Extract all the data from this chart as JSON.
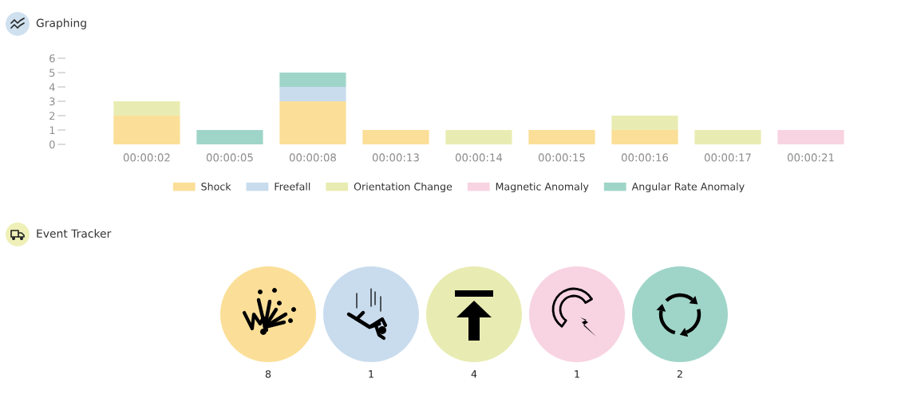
{
  "chart_data": [
    {
      "type": "bar",
      "title": "Graphing",
      "stacked": true,
      "legend": "bottom",
      "categories": [
        "00:00:02",
        "00:00:05",
        "00:00:08",
        "00:00:13",
        "00:00:14",
        "00:00:15",
        "00:00:16",
        "00:00:17",
        "00:00:21"
      ],
      "series": [
        {
          "name": "Shock",
          "color": "#fbdf98",
          "values": [
            2,
            null,
            3,
            1,
            null,
            1,
            1,
            null,
            null
          ]
        },
        {
          "name": "Freefall",
          "color": "#c9dcee",
          "values": [
            null,
            null,
            1,
            null,
            null,
            null,
            null,
            null,
            null
          ]
        },
        {
          "name": "Orientation Change",
          "color": "#e9ecb2",
          "values": [
            1,
            null,
            null,
            null,
            1,
            null,
            1,
            1,
            null
          ]
        },
        {
          "name": "Magnetic Anomaly",
          "color": "#f8d3e1",
          "values": [
            null,
            null,
            null,
            null,
            null,
            null,
            null,
            null,
            1
          ]
        },
        {
          "name": "Angular Rate Anomaly",
          "color": "#9fd5c8",
          "values": [
            null,
            1,
            1,
            null,
            null,
            null,
            null,
            null,
            null
          ]
        }
      ],
      "ylim": [
        0,
        6
      ],
      "yticks": [
        0,
        1,
        2,
        3,
        4,
        5,
        6
      ]
    },
    {
      "type": "other",
      "title": "Event Tracker",
      "categories": [
        null,
        null,
        null,
        null,
        null
      ],
      "values": [
        8,
        1,
        4,
        1,
        2
      ],
      "colors": [
        "#fbdf98",
        "#c9dcee",
        "#e9ecb2",
        "#f8d3e1",
        "#9fd5c8"
      ],
      "data_labels": true
    }
  ]
}
